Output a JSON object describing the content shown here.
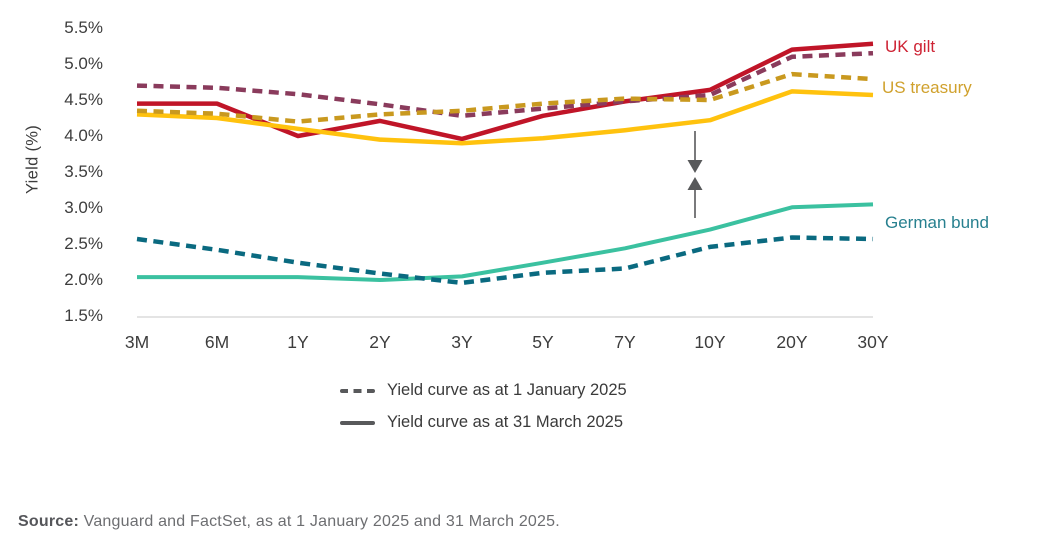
{
  "chart": {
    "y_axis_label": "Yield (%)",
    "y_ticks": [
      "5.5%",
      "5.0%",
      "4.5%",
      "4.0%",
      "3.5%",
      "3.0%",
      "2.5%",
      "2.0%",
      "1.5%"
    ],
    "x_ticks": [
      "3M",
      "6M",
      "1Y",
      "2Y",
      "3Y",
      "5Y",
      "7Y",
      "10Y",
      "20Y",
      "30Y"
    ],
    "series_labels": [
      {
        "text": "UK gilt",
        "color": "#ce2334"
      },
      {
        "text": "US treasury",
        "color": "#d0a12d"
      },
      {
        "text": "German bund",
        "color": "#27808f"
      }
    ]
  },
  "legend": {
    "swatch_color": "#58595b",
    "items": [
      {
        "style": "dashed",
        "label": "Yield curve as at 1 January 2025"
      },
      {
        "style": "solid",
        "label": "Yield curve as at 31 March 2025"
      }
    ]
  },
  "source": {
    "label": "Source:",
    "text": "Vanguard and FactSet, as at 1 January 2025 and 31 March 2025."
  },
  "chart_data": {
    "type": "line",
    "title": "",
    "xlabel": "",
    "ylabel": "Yield (%)",
    "ylim": [
      1.5,
      5.5
    ],
    "grid": "baseline-only",
    "legend_position": "bottom",
    "categories": [
      "3M",
      "6M",
      "1Y",
      "2Y",
      "3Y",
      "5Y",
      "7Y",
      "10Y",
      "20Y",
      "30Y"
    ],
    "series": [
      {
        "name": "UK gilt — 1 January 2025",
        "style": "dashed",
        "color": "#8a3b5c",
        "values": [
          4.7,
          4.67,
          4.58,
          4.44,
          4.28,
          4.38,
          4.48,
          4.57,
          5.1,
          5.15
        ]
      },
      {
        "name": "UK gilt — 31 March 2025",
        "style": "solid",
        "color": "#c01528",
        "values": [
          4.45,
          4.45,
          4.0,
          4.21,
          3.96,
          4.28,
          4.48,
          4.64,
          5.2,
          5.28
        ]
      },
      {
        "name": "US treasury — 1 January 2025",
        "style": "dashed",
        "color": "#c9991f",
        "values": [
          4.35,
          4.31,
          4.2,
          4.3,
          4.35,
          4.45,
          4.52,
          4.5,
          4.86,
          4.79
        ]
      },
      {
        "name": "US treasury — 31 March 2025",
        "style": "solid",
        "color": "#ffc20e",
        "values": [
          4.3,
          4.25,
          4.1,
          3.95,
          3.9,
          3.97,
          4.08,
          4.22,
          4.62,
          4.57
        ]
      },
      {
        "name": "German bund — 1 January 2025",
        "style": "dashed",
        "color": "#0a6a80",
        "values": [
          2.57,
          2.42,
          2.24,
          2.09,
          1.96,
          2.1,
          2.16,
          2.46,
          2.59,
          2.57
        ]
      },
      {
        "name": "German bund — 31 March 2025",
        "style": "solid",
        "color": "#3bc1a0",
        "values": [
          2.04,
          2.04,
          2.04,
          2.0,
          2.05,
          2.24,
          2.44,
          2.7,
          3.01,
          3.05
        ]
      }
    ],
    "annotation": {
      "type": "converging-arrows",
      "near_category": "10Y",
      "color": "#58595b"
    }
  }
}
